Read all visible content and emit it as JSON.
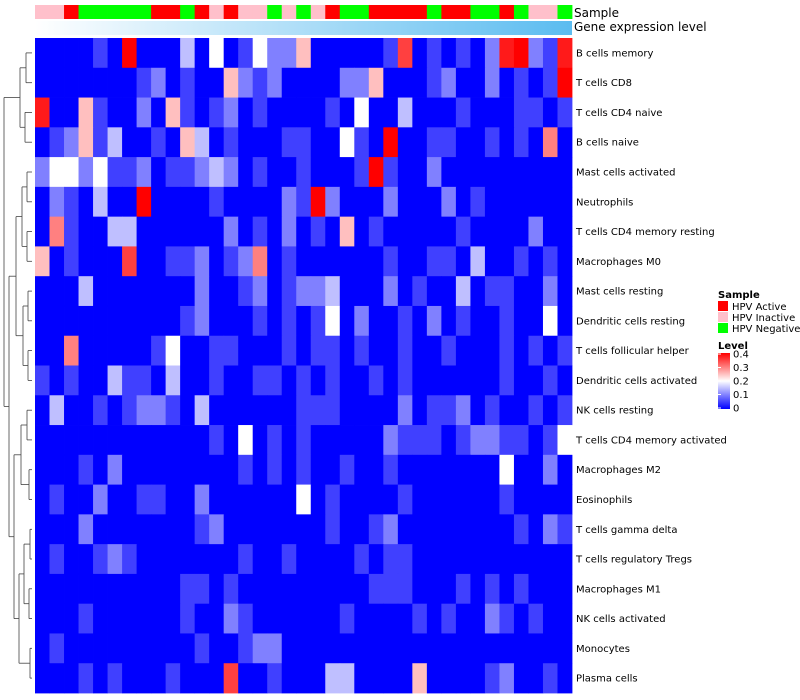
{
  "chart_data": {
    "type": "heatmap",
    "annotation_labels": {
      "sample": "Sample",
      "gene_expression": "Gene expression level"
    },
    "sample_groups": [
      "Inactive",
      "Inactive",
      "Active",
      "Negative",
      "Negative",
      "Negative",
      "Negative",
      "Negative",
      "Active",
      "Active",
      "Negative",
      "Active",
      "Inactive",
      "Active",
      "Inactive",
      "Inactive",
      "Negative",
      "Inactive",
      "Negative",
      "Inactive",
      "Active",
      "Negative",
      "Negative",
      "Active",
      "Active",
      "Active",
      "Active",
      "Negative",
      "Active",
      "Active",
      "Negative",
      "Negative",
      "Active",
      "Negative",
      "Inactive",
      "Inactive",
      "Negative"
    ],
    "gene_expression_gradient": [
      "#ffffff",
      "#5bbcf0"
    ],
    "rows": [
      "B cells memory",
      "T cells CD8",
      "T cells CD4 naive",
      "B cells naive",
      "Mast cells activated",
      "Neutrophils",
      "T cells CD4 memory resting",
      "Macrophages M0",
      "Mast cells resting",
      "Dendritic cells resting",
      "T cells follicular helper",
      "Dendritic cells activated",
      "NK cells resting",
      "T cells CD4 memory activated",
      "Macrophages M2",
      "Eosinophils",
      "T cells gamma delta",
      "T cells regulatory  Tregs",
      "Macrophages M1",
      "NK cells activated",
      "Monocytes",
      "Plasma cells"
    ],
    "values": [
      [
        0.0,
        0.0,
        0.0,
        0.0,
        0.05,
        0.0,
        0.4,
        0.0,
        0.0,
        0.0,
        0.15,
        0.0,
        0.2,
        0.0,
        0.05,
        0.2,
        0.1,
        0.1,
        0.25,
        0.0,
        0.0,
        0.0,
        0.0,
        0.0,
        0.05,
        0.35,
        0.0,
        0.05,
        0.0,
        0.05,
        0.0,
        0.1,
        0.38,
        0.4,
        0.1,
        0.05,
        0.38
      ],
      [
        0.0,
        0.0,
        0.0,
        0.0,
        0.0,
        0.0,
        0.0,
        0.05,
        0.1,
        0.0,
        0.05,
        0.0,
        0.0,
        0.25,
        0.1,
        0.05,
        0.1,
        0.0,
        0.0,
        0.0,
        0.0,
        0.1,
        0.1,
        0.25,
        0.0,
        0.0,
        0.0,
        0.05,
        0.1,
        0.0,
        0.0,
        0.1,
        0.0,
        0.05,
        0.0,
        0.05,
        0.4
      ],
      [
        0.38,
        0.0,
        0.0,
        0.25,
        0.05,
        0.0,
        0.0,
        0.1,
        0.0,
        0.25,
        0.05,
        0.0,
        0.05,
        0.1,
        0.0,
        0.05,
        0.0,
        0.0,
        0.0,
        0.0,
        0.05,
        0.0,
        0.2,
        0.0,
        0.0,
        0.15,
        0.0,
        0.0,
        0.0,
        0.05,
        0.0,
        0.0,
        0.0,
        0.05,
        0.05,
        0.0,
        0.05
      ],
      [
        0.0,
        0.05,
        0.1,
        0.25,
        0.05,
        0.15,
        0.0,
        0.0,
        0.05,
        0.0,
        0.25,
        0.15,
        0.0,
        0.05,
        0.0,
        0.0,
        0.0,
        0.05,
        0.05,
        0.0,
        0.0,
        0.2,
        0.05,
        0.0,
        0.4,
        0.0,
        0.0,
        0.05,
        0.05,
        0.0,
        0.0,
        0.05,
        0.0,
        0.05,
        0.0,
        0.3,
        0.0
      ],
      [
        0.1,
        0.2,
        0.2,
        0.1,
        0.2,
        0.05,
        0.05,
        0.1,
        0.0,
        0.05,
        0.05,
        0.1,
        0.15,
        0.1,
        0.0,
        0.05,
        0.0,
        0.0,
        0.05,
        0.0,
        0.0,
        0.0,
        0.05,
        0.4,
        0.05,
        0.0,
        0.0,
        0.1,
        0.0,
        0.0,
        0.0,
        0.0,
        0.0,
        0.0,
        0.0,
        0.0,
        0.0
      ],
      [
        0.0,
        0.1,
        0.05,
        0.0,
        0.15,
        0.0,
        0.0,
        0.4,
        0.0,
        0.0,
        0.0,
        0.0,
        0.05,
        0.0,
        0.0,
        0.0,
        0.0,
        0.1,
        0.05,
        0.4,
        0.1,
        0.0,
        0.0,
        0.0,
        0.1,
        0.0,
        0.0,
        0.0,
        0.1,
        0.0,
        0.05,
        0.0,
        0.0,
        0.0,
        0.0,
        0.0,
        0.0
      ],
      [
        0.0,
        0.3,
        0.05,
        0.0,
        0.0,
        0.15,
        0.15,
        0.0,
        0.0,
        0.0,
        0.0,
        0.0,
        0.0,
        0.1,
        0.0,
        0.05,
        0.0,
        0.1,
        0.0,
        0.05,
        0.0,
        0.25,
        0.0,
        0.05,
        0.0,
        0.0,
        0.0,
        0.0,
        0.0,
        0.05,
        0.0,
        0.0,
        0.0,
        0.0,
        0.1,
        0.0,
        0.0
      ],
      [
        0.25,
        0.0,
        0.05,
        0.0,
        0.0,
        0.0,
        0.35,
        0.0,
        0.0,
        0.05,
        0.05,
        0.1,
        0.0,
        0.05,
        0.1,
        0.3,
        0.0,
        0.05,
        0.0,
        0.0,
        0.0,
        0.0,
        0.0,
        0.0,
        0.05,
        0.0,
        0.0,
        0.05,
        0.05,
        0.0,
        0.15,
        0.0,
        0.0,
        0.05,
        0.0,
        0.05,
        0.0
      ],
      [
        0.0,
        0.0,
        0.0,
        0.15,
        0.0,
        0.0,
        0.0,
        0.0,
        0.0,
        0.0,
        0.0,
        0.1,
        0.0,
        0.0,
        0.05,
        0.1,
        0.0,
        0.05,
        0.1,
        0.1,
        0.15,
        0.0,
        0.0,
        0.0,
        0.1,
        0.0,
        0.05,
        0.0,
        0.0,
        0.15,
        0.0,
        0.05,
        0.05,
        0.0,
        0.0,
        0.1,
        0.0
      ],
      [
        0.0,
        0.0,
        0.0,
        0.0,
        0.0,
        0.0,
        0.0,
        0.0,
        0.0,
        0.0,
        0.05,
        0.1,
        0.0,
        0.0,
        0.0,
        0.05,
        0.0,
        0.05,
        0.0,
        0.05,
        0.2,
        0.0,
        0.1,
        0.0,
        0.0,
        0.05,
        0.0,
        0.1,
        0.0,
        0.05,
        0.0,
        0.0,
        0.05,
        0.0,
        0.0,
        0.2,
        0.0
      ],
      [
        0.0,
        0.0,
        0.3,
        0.0,
        0.0,
        0.0,
        0.0,
        0.0,
        0.05,
        0.2,
        0.0,
        0.0,
        0.05,
        0.05,
        0.0,
        0.0,
        0.0,
        0.05,
        0.0,
        0.05,
        0.05,
        0.0,
        0.05,
        0.0,
        0.0,
        0.05,
        0.0,
        0.0,
        0.05,
        0.0,
        0.0,
        0.0,
        0.05,
        0.0,
        0.05,
        0.0,
        0.05
      ],
      [
        0.05,
        0.0,
        0.05,
        0.0,
        0.0,
        0.15,
        0.05,
        0.05,
        0.0,
        0.15,
        0.0,
        0.0,
        0.05,
        0.0,
        0.0,
        0.05,
        0.05,
        0.0,
        0.05,
        0.0,
        0.05,
        0.0,
        0.0,
        0.05,
        0.0,
        0.05,
        0.0,
        0.0,
        0.0,
        0.0,
        0.0,
        0.0,
        0.05,
        0.0,
        0.0,
        0.05,
        0.0
      ],
      [
        0.0,
        0.15,
        0.0,
        0.0,
        0.05,
        0.0,
        0.05,
        0.1,
        0.1,
        0.05,
        0.0,
        0.15,
        0.0,
        0.0,
        0.0,
        0.0,
        0.0,
        0.0,
        0.05,
        0.05,
        0.05,
        0.0,
        0.0,
        0.0,
        0.0,
        0.1,
        0.0,
        0.05,
        0.05,
        0.1,
        0.0,
        0.05,
        0.0,
        0.0,
        0.05,
        0.0,
        0.05
      ],
      [
        0.0,
        0.0,
        0.0,
        0.0,
        0.0,
        0.0,
        0.0,
        0.0,
        0.0,
        0.0,
        0.0,
        0.0,
        0.05,
        0.0,
        0.2,
        0.0,
        0.05,
        0.0,
        0.05,
        0.0,
        0.0,
        0.0,
        0.0,
        0.0,
        0.1,
        0.05,
        0.05,
        0.05,
        0.0,
        0.05,
        0.1,
        0.1,
        0.05,
        0.05,
        0.0,
        0.05,
        0.2
      ],
      [
        0.0,
        0.0,
        0.0,
        0.05,
        0.0,
        0.1,
        0.0,
        0.0,
        0.0,
        0.0,
        0.0,
        0.0,
        0.0,
        0.0,
        0.05,
        0.0,
        0.05,
        0.0,
        0.05,
        0.0,
        0.0,
        0.05,
        0.0,
        0.0,
        0.05,
        0.0,
        0.0,
        0.0,
        0.0,
        0.0,
        0.0,
        0.0,
        0.2,
        0.0,
        0.0,
        0.1,
        0.0
      ],
      [
        0.0,
        0.05,
        0.0,
        0.0,
        0.1,
        0.0,
        0.0,
        0.05,
        0.05,
        0.0,
        0.0,
        0.1,
        0.0,
        0.0,
        0.0,
        0.0,
        0.0,
        0.0,
        0.2,
        0.0,
        0.05,
        0.0,
        0.0,
        0.0,
        0.0,
        0.05,
        0.0,
        0.0,
        0.0,
        0.0,
        0.0,
        0.0,
        0.05,
        0.0,
        0.0,
        0.0,
        0.0
      ],
      [
        0.0,
        0.0,
        0.0,
        0.1,
        0.0,
        0.0,
        0.0,
        0.0,
        0.0,
        0.0,
        0.0,
        0.05,
        0.1,
        0.0,
        0.0,
        0.0,
        0.0,
        0.0,
        0.0,
        0.0,
        0.05,
        0.0,
        0.0,
        0.05,
        0.1,
        0.0,
        0.0,
        0.0,
        0.0,
        0.0,
        0.0,
        0.0,
        0.0,
        0.05,
        0.0,
        0.1,
        0.05
      ],
      [
        0.0,
        0.05,
        0.0,
        0.0,
        0.05,
        0.1,
        0.05,
        0.0,
        0.0,
        0.0,
        0.0,
        0.0,
        0.0,
        0.0,
        0.05,
        0.0,
        0.0,
        0.05,
        0.0,
        0.0,
        0.0,
        0.0,
        0.05,
        0.0,
        0.05,
        0.05,
        0.0,
        0.0,
        0.0,
        0.0,
        0.0,
        0.0,
        0.0,
        0.0,
        0.0,
        0.0,
        0.0
      ],
      [
        0.0,
        0.0,
        0.0,
        0.0,
        0.0,
        0.0,
        0.0,
        0.0,
        0.0,
        0.0,
        0.05,
        0.05,
        0.0,
        0.05,
        0.0,
        0.0,
        0.0,
        0.0,
        0.0,
        0.0,
        0.0,
        0.0,
        0.0,
        0.05,
        0.05,
        0.05,
        0.0,
        0.0,
        0.0,
        0.05,
        0.0,
        0.05,
        0.0,
        0.05,
        0.0,
        0.0,
        0.0
      ],
      [
        0.0,
        0.0,
        0.0,
        0.05,
        0.0,
        0.0,
        0.0,
        0.0,
        0.0,
        0.0,
        0.05,
        0.0,
        0.0,
        0.1,
        0.05,
        0.0,
        0.0,
        0.0,
        0.0,
        0.0,
        0.0,
        0.05,
        0.0,
        0.0,
        0.0,
        0.0,
        0.05,
        0.0,
        0.05,
        0.0,
        0.0,
        0.1,
        0.05,
        0.0,
        0.05,
        0.0,
        0.0
      ],
      [
        0.0,
        0.05,
        0.0,
        0.0,
        0.0,
        0.0,
        0.0,
        0.0,
        0.0,
        0.0,
        0.0,
        0.05,
        0.0,
        0.0,
        0.05,
        0.1,
        0.1,
        0.0,
        0.0,
        0.0,
        0.0,
        0.0,
        0.0,
        0.0,
        0.0,
        0.0,
        0.0,
        0.0,
        0.0,
        0.0,
        0.0,
        0.0,
        0.0,
        0.0,
        0.0,
        0.0,
        0.0
      ],
      [
        0.0,
        0.0,
        0.0,
        0.05,
        0.0,
        0.05,
        0.0,
        0.0,
        0.0,
        0.05,
        0.0,
        0.0,
        0.0,
        0.35,
        0.0,
        0.0,
        0.05,
        0.0,
        0.0,
        0.0,
        0.15,
        0.15,
        0.0,
        0.0,
        0.0,
        0.0,
        0.25,
        0.0,
        0.0,
        0.0,
        0.0,
        0.05,
        0.1,
        0.0,
        0.0,
        0.05,
        0.0
      ]
    ],
    "value_range": [
      0,
      0.4
    ],
    "color_scale": [
      "#0000ff",
      "#ffffff",
      "#ff0000"
    ],
    "legend": {
      "sample_title": "Sample",
      "sample_entries": [
        {
          "key": "Active",
          "label": "HPV Active",
          "color": "#ff0000"
        },
        {
          "key": "Inactive",
          "label": "HPV Inactive",
          "color": "#ffc0cb"
        },
        {
          "key": "Negative",
          "label": "HPV Negative",
          "color": "#00ff00"
        }
      ],
      "level_title": "Level",
      "level_ticks": [
        "0.4",
        "0.3",
        "0.2",
        "0.1",
        "0"
      ]
    }
  }
}
